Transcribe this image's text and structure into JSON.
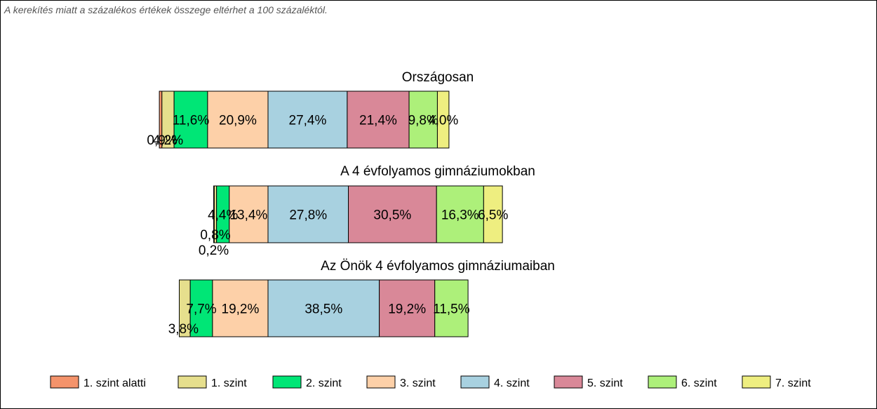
{
  "note": "A kerekítés miatt a  százalékos értékek összege eltérhet a 100 százaléktól.",
  "chart_data": {
    "type": "bar",
    "orientation": "horizontal-stacked",
    "grid": false,
    "legend_placement": "bottom",
    "categories": [
      "1. szint alatti",
      "1. szint",
      "2. szint",
      "3. szint",
      "4. szint",
      "5. szint",
      "6. szint",
      "7. szint"
    ],
    "colors": [
      "#f4936b",
      "#e6df8d",
      "#00e676",
      "#fdd0a8",
      "#a8d1e0",
      "#d98898",
      "#adf07a",
      "#eeee80"
    ],
    "series": [
      {
        "name": "Országosan",
        "values": [
          0.9,
          4.2,
          11.6,
          20.9,
          27.4,
          21.4,
          9.8,
          4.0
        ],
        "labels": [
          "0,9%",
          "4,2%",
          "11,6%",
          "20,9%",
          "27,4%",
          "21,4%",
          "9,8%",
          "4,0%"
        ]
      },
      {
        "name": "A 4 évfolyamos gimnáziumokban",
        "values": [
          0.2,
          0.8,
          4.4,
          13.4,
          27.8,
          30.5,
          16.3,
          6.5
        ],
        "labels": [
          "0,2%",
          "0,8%",
          "4,4%",
          "13,4%",
          "27,8%",
          "30,5%",
          "16,3%",
          "6,5%"
        ]
      },
      {
        "name": "Az Önök 4 évfolyamos gimnáziumaiban",
        "values": [
          0,
          3.8,
          7.7,
          19.2,
          38.5,
          19.2,
          11.5,
          0
        ],
        "labels": [
          "",
          "3,8%",
          "7,7%",
          "19,2%",
          "38,5%",
          "19,2%",
          "11,5%",
          ""
        ]
      }
    ]
  }
}
